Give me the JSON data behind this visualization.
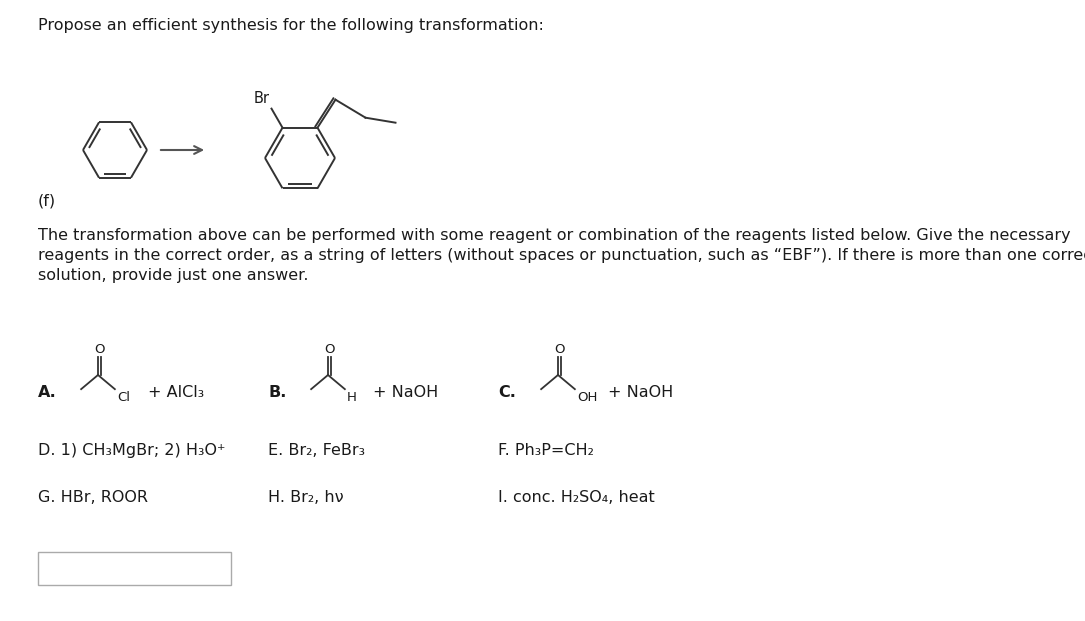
{
  "bg_color": "#ffffff",
  "title_text": "Propose an efficient synthesis for the following transformation:",
  "label_f": "(f)",
  "paragraph_line1": "The transformation above can be performed with some reagent or combination of the reagents listed below. Give the necessary",
  "paragraph_line2": "reagents in the correct order, as a string of letters (without spaces or punctuation, such as “EBF”). If there is more than one correct",
  "paragraph_line3": "solution, provide just one answer.",
  "reagent_A_label": "A.",
  "reagent_A_text": "+ AlCl₃",
  "reagent_A_sub": "Cl",
  "reagent_B_label": "B.",
  "reagent_B_text": "+ NaOH",
  "reagent_B_sub": "H",
  "reagent_C_label": "C.",
  "reagent_C_text": "+ NaOH",
  "reagent_C_sub": "OH",
  "reagent_D": "D. 1) CH₃MgBr; 2) H₃O⁺",
  "reagent_E": "E. Br₂, FeBr₃",
  "reagent_F": "F. Ph₃P=CH₂",
  "reagent_G": "G. HBr, ROOR",
  "reagent_H": "H. Br₂, hν",
  "reagent_I": "I. conc. H₂SO₄, heat",
  "font_size_title": 11.5,
  "font_size_body": 11.5,
  "font_size_reagent": 11.5,
  "font_size_chem": 9.5,
  "line_color": "#333333"
}
